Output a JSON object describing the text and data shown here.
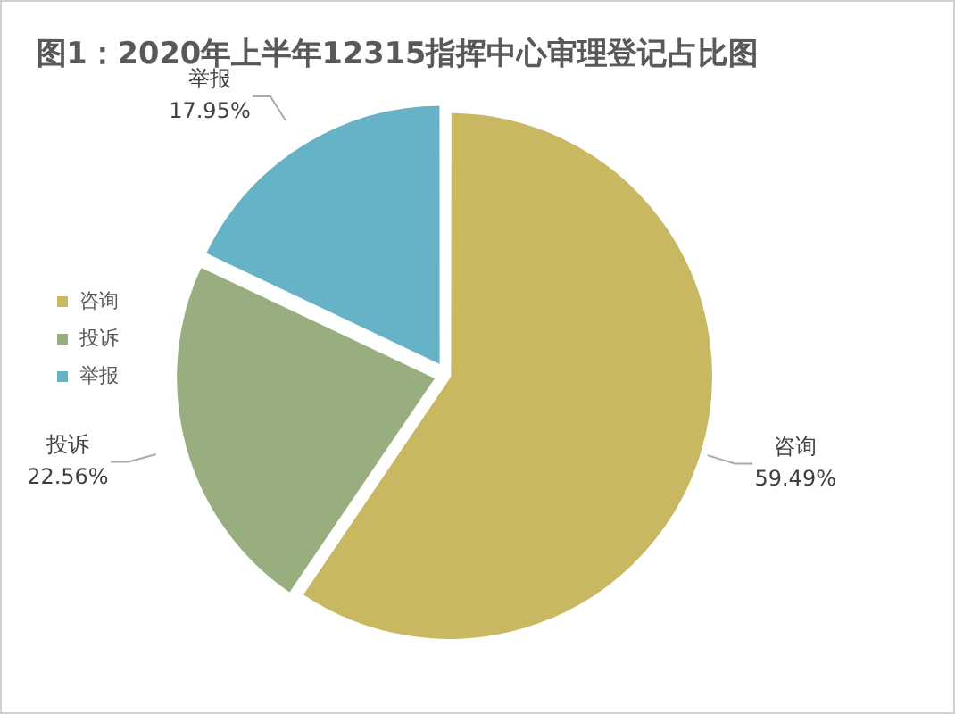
{
  "chart_data": {
    "type": "pie",
    "title": "图1：2020年上半年12315指挥中心审理登记占比图",
    "categories": [
      "咨询",
      "投诉",
      "举报"
    ],
    "values": [
      59.49,
      22.56,
      17.95
    ],
    "value_labels": [
      "59.49%",
      "22.56%",
      "17.95%"
    ],
    "colors": [
      "#c9b862",
      "#98ae7f",
      "#66b2c6"
    ],
    "legend": "left"
  }
}
